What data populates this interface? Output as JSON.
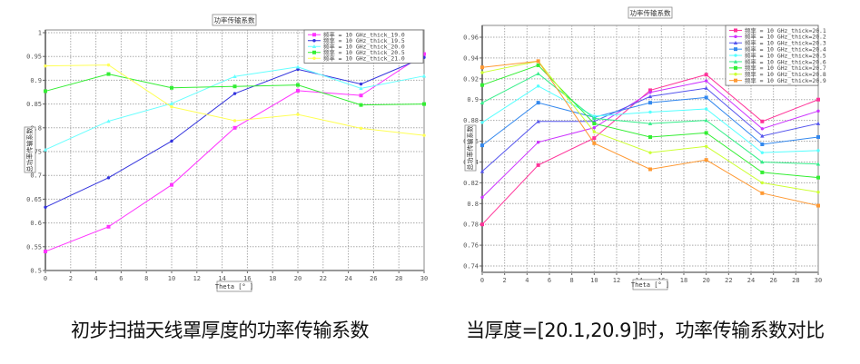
{
  "captions": {
    "left": "初步扫描天线罩厚度的功率传输系数",
    "right": "当厚度=[20.1,20.9]时，功率传输系数对比"
  },
  "chart_data": [
    {
      "type": "line",
      "title": "功率传输系数",
      "xlabel": "Theta [° ]",
      "ylabel": "总功率传输系数",
      "x": [
        0,
        5,
        10,
        15,
        20,
        25,
        30
      ],
      "xlim": [
        0,
        30
      ],
      "ylim": [
        0.5,
        1.0
      ],
      "xticks": [
        0,
        2,
        4,
        6,
        8,
        10,
        12,
        14,
        16,
        18,
        20,
        22,
        24,
        26,
        28,
        30
      ],
      "yticks": [
        0.5,
        0.55,
        0.6,
        0.65,
        0.7,
        0.75,
        0.8,
        0.85,
        0.9,
        0.95,
        1
      ],
      "ytick_labels": [
        "0.5",
        "0.55",
        "0.6",
        "0.65",
        "0.7",
        "0.75",
        "0.8",
        "0.85",
        "0.9",
        "0.95",
        "1"
      ],
      "grid": true,
      "legend_position": "top-right",
      "series": [
        {
          "name": "频率 = 10 GHz_thick_19.0",
          "color": "#ff33ff",
          "marker": "square",
          "values": [
            0.54,
            0.592,
            0.68,
            0.8,
            0.878,
            0.868,
            0.955
          ]
        },
        {
          "name": "频率 = 10 GHz_thick_19.5",
          "color": "#3333dd",
          "marker": "dot",
          "values": [
            0.633,
            0.695,
            0.772,
            0.872,
            0.923,
            0.892,
            0.948
          ]
        },
        {
          "name": "频率 = 10 GHz_thick_20.0",
          "color": "#66ffff",
          "marker": "triangle",
          "values": [
            0.754,
            0.814,
            0.851,
            0.908,
            0.928,
            0.883,
            0.909
          ]
        },
        {
          "name": "频率 = 10 GHz_thick_20.5",
          "color": "#33ee33",
          "marker": "square",
          "values": [
            0.877,
            0.913,
            0.884,
            0.887,
            0.89,
            0.848,
            0.85
          ]
        },
        {
          "name": "频率 = 10 GHz_thick_21.0",
          "color": "#ffff55",
          "marker": "dot",
          "values": [
            0.93,
            0.932,
            0.844,
            0.815,
            0.828,
            0.799,
            0.784
          ]
        }
      ]
    },
    {
      "type": "line",
      "title": "功率传输系数",
      "xlabel": "Theta [° ]",
      "ylabel": "总功率传输系数",
      "x": [
        0,
        5,
        10,
        15,
        20,
        25,
        30
      ],
      "xlim": [
        0,
        30
      ],
      "ylim": [
        0.734,
        0.971
      ],
      "xticks": [
        0,
        2,
        4,
        6,
        8,
        10,
        12,
        14,
        16,
        18,
        20,
        22,
        24,
        26,
        28,
        30
      ],
      "yticks": [
        0.74,
        0.76,
        0.78,
        0.8,
        0.82,
        0.84,
        0.86,
        0.88,
        0.9,
        0.92,
        0.94,
        0.96
      ],
      "ytick_labels": [
        "0.74",
        "0.76",
        "0.78",
        "0.8",
        "0.82",
        "0.84",
        "0.86",
        "0.88",
        "0.9",
        "0.92",
        "0.94",
        "0.96"
      ],
      "grid": true,
      "legend_position": "top-right",
      "series": [
        {
          "name": "频率 = 10 GHz_thick=20.1",
          "color": "#ff3399",
          "marker": "square",
          "values": [
            0.78,
            0.837,
            0.863,
            0.909,
            0.924,
            0.879,
            0.9
          ]
        },
        {
          "name": "频率 = 10 GHz_thick=20.2",
          "color": "#cc33ff",
          "marker": "dot",
          "values": [
            0.806,
            0.859,
            0.873,
            0.907,
            0.918,
            0.872,
            0.889
          ]
        },
        {
          "name": "频率 = 10 GHz_thick=20.3",
          "color": "#5555ee",
          "marker": "triangle",
          "values": [
            0.831,
            0.879,
            0.879,
            0.903,
            0.911,
            0.865,
            0.877
          ]
        },
        {
          "name": "频率 = 10 GHz_thick=20.4",
          "color": "#3388ee",
          "marker": "square",
          "values": [
            0.856,
            0.897,
            0.883,
            0.897,
            0.902,
            0.857,
            0.864
          ]
        },
        {
          "name": "频率 = 10 GHz_thick=20.5",
          "color": "#55ffff",
          "marker": "dot",
          "values": [
            0.878,
            0.913,
            0.884,
            0.888,
            0.891,
            0.849,
            0.851
          ]
        },
        {
          "name": "频率 = 10 GHz_thick=20.6",
          "color": "#33ee88",
          "marker": "triangle",
          "values": [
            0.897,
            0.925,
            0.882,
            0.877,
            0.88,
            0.84,
            0.838
          ]
        },
        {
          "name": "频率 = 10 GHz_thick=20.7",
          "color": "#33ee33",
          "marker": "square",
          "values": [
            0.914,
            0.933,
            0.877,
            0.864,
            0.868,
            0.83,
            0.825
          ]
        },
        {
          "name": "频率 = 10 GHz_thick=20.8",
          "color": "#ccff33",
          "marker": "dot",
          "values": [
            0.926,
            0.937,
            0.869,
            0.849,
            0.855,
            0.82,
            0.811
          ]
        },
        {
          "name": "频率 = 10 GHz_thick=20.9",
          "color": "#ff9933",
          "marker": "square",
          "values": [
            0.931,
            0.937,
            0.858,
            0.833,
            0.842,
            0.81,
            0.798
          ]
        }
      ]
    }
  ]
}
